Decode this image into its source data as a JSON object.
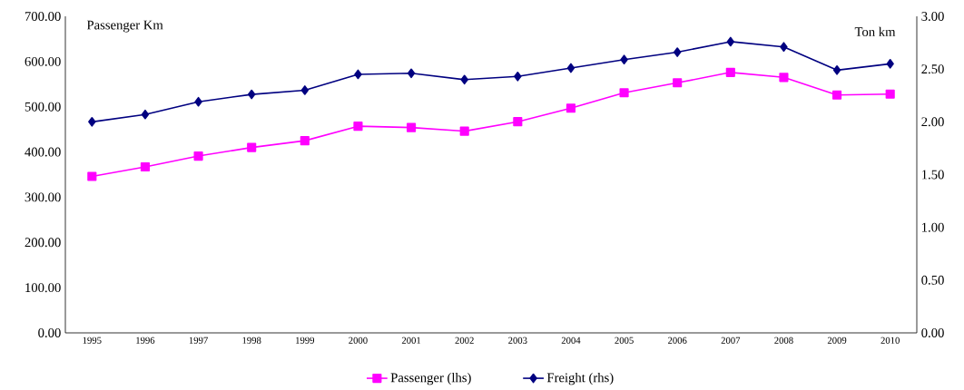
{
  "chart_data": {
    "type": "line",
    "ylabel": "Passenger Km",
    "y2label": "Ton km",
    "categories": [
      "1995",
      "1996",
      "1997",
      "1998",
      "1999",
      "2000",
      "2001",
      "2002",
      "2003",
      "2004",
      "2005",
      "2006",
      "2007",
      "2008",
      "2009",
      "2010"
    ],
    "series": [
      {
        "name": "Passenger (lhs)",
        "color": "#ff00ff",
        "marker": "square",
        "values": [
          346,
          367,
          391,
          410,
          425,
          457,
          454,
          446,
          467,
          497,
          531,
          553,
          576,
          565,
          526,
          528
        ]
      },
      {
        "name": "Freight (rhs)",
        "color": "#000080",
        "marker": "diamond",
        "axis": "y2",
        "values": [
          2.0,
          2.07,
          2.19,
          2.26,
          2.3,
          2.45,
          2.46,
          2.4,
          2.43,
          2.51,
          2.59,
          2.66,
          2.76,
          2.71,
          2.49,
          2.55
        ]
      }
    ],
    "ylim": [
      0,
      700
    ],
    "yticks": [
      {
        "value": 0,
        "label": "0.00"
      },
      {
        "value": 100,
        "label": "100.00"
      },
      {
        "value": 200,
        "label": "200.00"
      },
      {
        "value": 300,
        "label": "300.00"
      },
      {
        "value": 400,
        "label": "400.00"
      },
      {
        "value": 500,
        "label": "500.00"
      },
      {
        "value": 600,
        "label": "600.00"
      },
      {
        "value": 700,
        "label": "700.00"
      }
    ],
    "y2lim": [
      0,
      3
    ],
    "y2ticks": [
      {
        "value": 0,
        "label": "0.00"
      },
      {
        "value": 0.5,
        "label": "0.50"
      },
      {
        "value": 1,
        "label": "1.00"
      },
      {
        "value": 1.5,
        "label": "1.50"
      },
      {
        "value": 2,
        "label": "2.00"
      },
      {
        "value": 2.5,
        "label": "2.50"
      },
      {
        "value": 3,
        "label": "3.00"
      }
    ],
    "legend": "bottom"
  }
}
